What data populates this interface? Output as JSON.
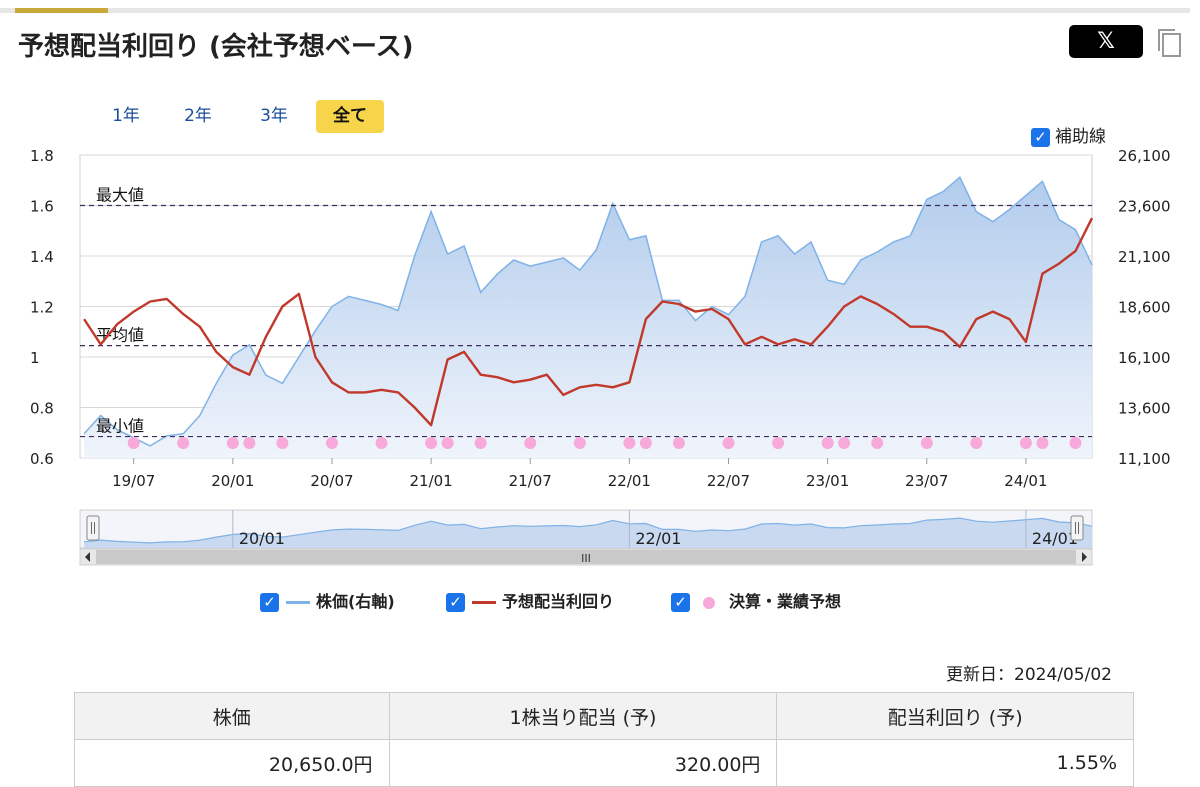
{
  "header": {
    "title": "予想配当利回り (会社予想ベース)",
    "share_label": "𝕏",
    "copy_icon": "copy-icon"
  },
  "ranges": {
    "items": [
      {
        "label": "1年"
      },
      {
        "label": "2年"
      },
      {
        "label": "3年"
      },
      {
        "label": "全て"
      }
    ],
    "selected": "全て"
  },
  "aux": {
    "checkbox_icon": "checkbox-checked-icon",
    "label": "補助線"
  },
  "chart_data": {
    "type": "line",
    "x_ticks": [
      "19/07",
      "20/01",
      "20/07",
      "21/01",
      "21/07",
      "22/01",
      "22/07",
      "23/01",
      "23/07",
      "24/01"
    ],
    "y_left": {
      "ticks": [
        "1.8",
        "1.6",
        "1.4",
        "1.2",
        "1",
        "0.8",
        "0.6"
      ],
      "range": [
        0.6,
        1.8
      ]
    },
    "y_right": {
      "ticks": [
        "26,100",
        "23,600",
        "21,100",
        "18,600",
        "16,100",
        "13,600",
        "11,100"
      ],
      "range": [
        11100,
        26100
      ]
    },
    "reference_lines": [
      {
        "label": "最大値",
        "value": 1.6
      },
      {
        "label": "平均値",
        "value": 1.045
      },
      {
        "label": "最小値",
        "value": 0.685
      }
    ],
    "series": [
      {
        "name": "株価(右軸)",
        "axis": "right",
        "color": "#7fb2e6",
        "points": [
          [
            "19/04",
            12300
          ],
          [
            "19/05",
            13200
          ],
          [
            "19/06",
            12500
          ],
          [
            "19/07",
            12100
          ],
          [
            "19/08",
            11700
          ],
          [
            "19/09",
            12200
          ],
          [
            "19/10",
            12300
          ],
          [
            "19/11",
            13200
          ],
          [
            "19/12",
            14800
          ],
          [
            "20/01",
            16200
          ],
          [
            "20/02",
            16700
          ],
          [
            "20/03",
            15200
          ],
          [
            "20/04",
            14800
          ],
          [
            "20/05",
            16100
          ],
          [
            "20/06",
            17400
          ],
          [
            "20/07",
            18600
          ],
          [
            "20/08",
            19100
          ],
          [
            "20/09",
            18900
          ],
          [
            "20/10",
            18700
          ],
          [
            "20/11",
            18400
          ],
          [
            "20/12",
            21100
          ],
          [
            "21/01",
            23300
          ],
          [
            "21/02",
            21200
          ],
          [
            "21/03",
            21600
          ],
          [
            "21/04",
            19300
          ],
          [
            "21/05",
            20200
          ],
          [
            "21/06",
            20900
          ],
          [
            "21/07",
            20600
          ],
          [
            "21/08",
            20800
          ],
          [
            "21/09",
            21000
          ],
          [
            "21/10",
            20400
          ],
          [
            "21/11",
            21400
          ],
          [
            "21/12",
            23700
          ],
          [
            "22/01",
            21900
          ],
          [
            "22/02",
            22100
          ],
          [
            "22/03",
            18900
          ],
          [
            "22/04",
            18900
          ],
          [
            "22/05",
            17900
          ],
          [
            "22/06",
            18600
          ],
          [
            "22/07",
            18200
          ],
          [
            "22/08",
            19100
          ],
          [
            "22/09",
            21800
          ],
          [
            "22/10",
            22100
          ],
          [
            "22/11",
            21200
          ],
          [
            "22/12",
            21800
          ],
          [
            "23/01",
            19900
          ],
          [
            "23/02",
            19700
          ],
          [
            "23/03",
            20900
          ],
          [
            "23/04",
            21300
          ],
          [
            "23/05",
            21800
          ],
          [
            "23/06",
            22100
          ],
          [
            "23/07",
            23900
          ],
          [
            "23/08",
            24300
          ],
          [
            "23/09",
            25000
          ],
          [
            "23/10",
            23300
          ],
          [
            "23/11",
            22800
          ],
          [
            "23/12",
            23400
          ],
          [
            "24/01",
            24100
          ],
          [
            "24/02",
            24800
          ],
          [
            "24/03",
            22900
          ],
          [
            "24/04",
            22400
          ],
          [
            "24/05",
            20650
          ]
        ]
      },
      {
        "name": "予想配当利回り",
        "axis": "left",
        "color": "#c0392b",
        "points": [
          [
            "19/04",
            1.15
          ],
          [
            "19/05",
            1.05
          ],
          [
            "19/06",
            1.13
          ],
          [
            "19/07",
            1.18
          ],
          [
            "19/08",
            1.22
          ],
          [
            "19/09",
            1.23
          ],
          [
            "19/10",
            1.17
          ],
          [
            "19/11",
            1.12
          ],
          [
            "19/12",
            1.02
          ],
          [
            "20/01",
            0.96
          ],
          [
            "20/02",
            0.93
          ],
          [
            "20/03",
            1.08
          ],
          [
            "20/04",
            1.2
          ],
          [
            "20/05",
            1.25
          ],
          [
            "20/06",
            1.0
          ],
          [
            "20/07",
            0.9
          ],
          [
            "20/08",
            0.86
          ],
          [
            "20/09",
            0.86
          ],
          [
            "20/10",
            0.87
          ],
          [
            "20/11",
            0.86
          ],
          [
            "20/12",
            0.8
          ],
          [
            "21/01",
            0.73
          ],
          [
            "21/02",
            0.99
          ],
          [
            "21/03",
            1.02
          ],
          [
            "21/04",
            0.93
          ],
          [
            "21/05",
            0.92
          ],
          [
            "21/06",
            0.9
          ],
          [
            "21/07",
            0.91
          ],
          [
            "21/08",
            0.93
          ],
          [
            "21/09",
            0.85
          ],
          [
            "21/10",
            0.88
          ],
          [
            "21/11",
            0.89
          ],
          [
            "21/12",
            0.88
          ],
          [
            "22/01",
            0.9
          ],
          [
            "22/02",
            1.15
          ],
          [
            "22/03",
            1.22
          ],
          [
            "22/04",
            1.21
          ],
          [
            "22/05",
            1.18
          ],
          [
            "22/06",
            1.19
          ],
          [
            "22/07",
            1.15
          ],
          [
            "22/08",
            1.05
          ],
          [
            "22/09",
            1.08
          ],
          [
            "22/10",
            1.05
          ],
          [
            "22/11",
            1.07
          ],
          [
            "22/12",
            1.05
          ],
          [
            "23/01",
            1.12
          ],
          [
            "23/02",
            1.2
          ],
          [
            "23/03",
            1.24
          ],
          [
            "23/04",
            1.21
          ],
          [
            "23/05",
            1.17
          ],
          [
            "23/06",
            1.12
          ],
          [
            "23/07",
            1.12
          ],
          [
            "23/08",
            1.1
          ],
          [
            "23/09",
            1.04
          ],
          [
            "23/10",
            1.15
          ],
          [
            "23/11",
            1.18
          ],
          [
            "23/12",
            1.15
          ],
          [
            "24/01",
            1.06
          ],
          [
            "24/02",
            1.33
          ],
          [
            "24/03",
            1.37
          ],
          [
            "24/04",
            1.42
          ],
          [
            "24/05",
            1.55
          ]
        ]
      }
    ],
    "events": {
      "name": "決算・業績予想",
      "color": "#f7a9d9",
      "dates": [
        "19/07",
        "19/10",
        "20/01",
        "20/02",
        "20/04",
        "20/07",
        "20/10",
        "21/01",
        "21/02",
        "21/04",
        "21/07",
        "21/10",
        "22/01",
        "22/02",
        "22/04",
        "22/07",
        "22/10",
        "23/01",
        "23/02",
        "23/04",
        "23/07",
        "23/10",
        "24/01",
        "24/02",
        "24/04"
      ]
    },
    "legend": [
      {
        "label": "株価(右軸)"
      },
      {
        "label": "予想配当利回り"
      },
      {
        "label": "決算・業績予想"
      }
    ],
    "navigator": {
      "labels": [
        "20/01",
        "22/01",
        "24/01"
      ],
      "handle_label": "III"
    }
  },
  "updated": "更新日：2024/05/02",
  "table": {
    "headers": [
      "株価",
      "1株当り配当 (予)",
      "配当利回り (予)"
    ],
    "values": [
      "20,650.0円",
      "320.00円",
      "1.55%"
    ]
  }
}
